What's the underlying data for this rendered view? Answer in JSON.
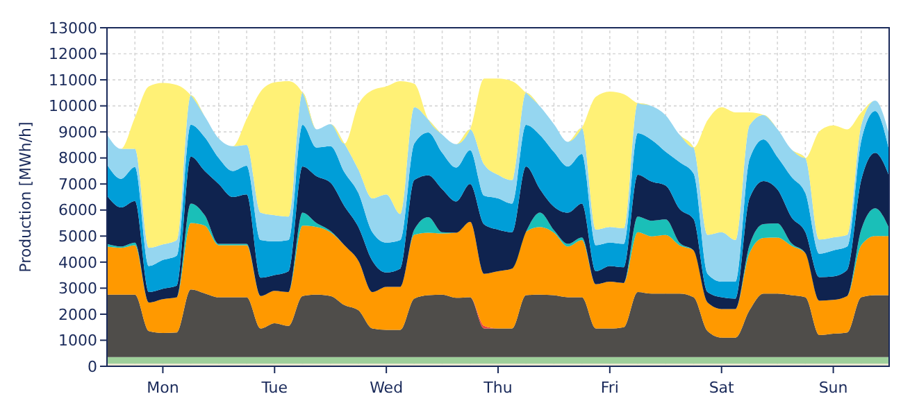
{
  "chart_data": {
    "type": "area",
    "stacked": true,
    "ylabel": "Production [MWh/h]",
    "grid": true,
    "categories": [
      null,
      null,
      null,
      null,
      "Mon",
      null,
      null,
      null,
      null,
      null,
      null,
      null,
      "Tue",
      null,
      null,
      null,
      null,
      null,
      null,
      null,
      "Wed",
      null,
      null,
      null,
      null,
      null,
      null,
      null,
      "Thu",
      null,
      null,
      null,
      null,
      null,
      null,
      null,
      "Fri",
      null,
      null,
      null,
      null,
      null,
      null,
      null,
      "Sat",
      null,
      null,
      null,
      null,
      null,
      null,
      null,
      "Sun",
      null,
      null,
      null,
      null
    ],
    "ylim": [
      0,
      13000
    ],
    "yticks": [
      0,
      1000,
      2000,
      3000,
      4000,
      5000,
      6000,
      7000,
      8000,
      9000,
      10000,
      11000,
      12000,
      13000
    ],
    "series": [
      {
        "color": "#ede6cf",
        "values": [
          100,
          100,
          100,
          100,
          100,
          100,
          100,
          100,
          100,
          100,
          100,
          100,
          100,
          100,
          100,
          100,
          100,
          100,
          100,
          100,
          100,
          100,
          100,
          100,
          100,
          100,
          100,
          100,
          100,
          100,
          100,
          100,
          100,
          100,
          100,
          100,
          100,
          100,
          100,
          100,
          100,
          100,
          100,
          100,
          100,
          100,
          100,
          100,
          100,
          100,
          100,
          100,
          100,
          100,
          100,
          100,
          100
        ]
      },
      {
        "color": "#9fd09b",
        "values": [
          250,
          250,
          250,
          250,
          250,
          250,
          250,
          250,
          250,
          250,
          250,
          250,
          250,
          250,
          250,
          250,
          250,
          250,
          250,
          250,
          250,
          250,
          250,
          250,
          250,
          250,
          250,
          250,
          250,
          250,
          250,
          250,
          250,
          250,
          250,
          250,
          250,
          250,
          250,
          250,
          250,
          250,
          250,
          250,
          250,
          250,
          250,
          250,
          250,
          250,
          250,
          250,
          250,
          250,
          250,
          250,
          250
        ]
      },
      {
        "color": "#4f4d4a",
        "values": [
          2400,
          2400,
          2400,
          1000,
          930,
          950,
          2600,
          2450,
          2300,
          2300,
          2300,
          1100,
          1300,
          1200,
          2350,
          2400,
          2350,
          2000,
          1800,
          1100,
          1050,
          1050,
          2250,
          2380,
          2400,
          2280,
          2300,
          1100,
          1100,
          1100,
          2380,
          2400,
          2380,
          2300,
          2300,
          1100,
          1100,
          1150,
          2500,
          2440,
          2440,
          2440,
          2300,
          1000,
          750,
          750,
          1800,
          2440,
          2440,
          2380,
          2300,
          850,
          900,
          950,
          2300,
          2380,
          2380
        ]
      },
      {
        "color": "#e8453c",
        "values": [
          0,
          0,
          0,
          0,
          0,
          0,
          0,
          0,
          0,
          0,
          0,
          0,
          0,
          0,
          0,
          0,
          0,
          0,
          0,
          0,
          0,
          0,
          0,
          0,
          0,
          0,
          0,
          100,
          0,
          0,
          0,
          0,
          0,
          0,
          0,
          0,
          0,
          0,
          0,
          0,
          0,
          0,
          0,
          0,
          0,
          0,
          0,
          0,
          0,
          0,
          0,
          0,
          0,
          0,
          0,
          0,
          0
        ]
      },
      {
        "color": "#ff9900",
        "values": [
          1850,
          1800,
          1900,
          1100,
          1300,
          1350,
          2550,
          2600,
          2000,
          2000,
          2000,
          1250,
          1250,
          1300,
          2700,
          2600,
          2450,
          2300,
          1900,
          1400,
          1650,
          1650,
          2450,
          2400,
          2350,
          2500,
          2900,
          2000,
          2200,
          2300,
          2440,
          2600,
          2400,
          1950,
          2200,
          1700,
          1800,
          1700,
          2300,
          2200,
          2250,
          1850,
          1800,
          1100,
          1100,
          1100,
          2200,
          2140,
          2150,
          1900,
          1700,
          1320,
          1300,
          1400,
          2000,
          2270,
          2270
        ]
      },
      {
        "color": "#1abfb8",
        "values": [
          100,
          50,
          100,
          0,
          0,
          0,
          750,
          400,
          50,
          50,
          50,
          0,
          0,
          0,
          500,
          150,
          50,
          0,
          0,
          0,
          0,
          0,
          200,
          600,
          50,
          0,
          0,
          0,
          0,
          0,
          0,
          550,
          100,
          100,
          100,
          0,
          0,
          0,
          600,
          600,
          600,
          100,
          0,
          0,
          0,
          0,
          300,
          530,
          550,
          100,
          0,
          0,
          0,
          0,
          600,
          1070,
          300
        ]
      },
      {
        "color": "#0f234f",
        "values": [
          1850,
          1500,
          1600,
          400,
          400,
          450,
          1800,
          1700,
          2300,
          1800,
          1900,
          700,
          600,
          800,
          1770,
          1800,
          1850,
          1500,
          1300,
          1200,
          550,
          700,
          1900,
          1600,
          1650,
          1200,
          1450,
          1900,
          1600,
          1400,
          2500,
          900,
          900,
          1200,
          1300,
          500,
          600,
          600,
          1600,
          1500,
          1300,
          1300,
          1200,
          400,
          450,
          400,
          1800,
          1650,
          1300,
          1000,
          800,
          900,
          900,
          1000,
          1900,
          2130,
          2000
        ]
      },
      {
        "color": "#009ed8",
        "values": [
          1200,
          1100,
          1300,
          1000,
          1100,
          1150,
          1230,
          1300,
          1000,
          1000,
          1100,
          1450,
          1300,
          1200,
          1600,
          1100,
          1400,
          1300,
          1300,
          1100,
          1150,
          1100,
          1400,
          1650,
          1400,
          1300,
          1300,
          1100,
          1200,
          1100,
          1600,
          2080,
          2100,
          1770,
          1900,
          1000,
          900,
          900,
          1600,
          1600,
          1300,
          1800,
          1750,
          700,
          600,
          650,
          1500,
          1600,
          1250,
          1550,
          1500,
          900,
          1000,
          900,
          1500,
          1600,
          1000
        ]
      },
      {
        "color": "#95d6f0",
        "values": [
          1150,
          1150,
          700,
          700,
          600,
          600,
          1130,
          800,
          750,
          950,
          800,
          1050,
          1000,
          900,
          1230,
          700,
          850,
          1100,
          900,
          1300,
          1850,
          1000,
          1400,
          500,
          700,
          900,
          800,
          1200,
          900,
          900,
          1230,
          1100,
          1070,
          950,
          1000,
          600,
          600,
          600,
          1150,
          1300,
          1400,
          1050,
          1000,
          1500,
          1900,
          1600,
          1300,
          940,
          1070,
          1050,
          1350,
          550,
          500,
          450,
          600,
          400,
          600
        ]
      },
      {
        "color": "#fff176",
        "values": [
          0,
          0,
          1200,
          6200,
          6200,
          5950,
          0,
          0,
          0,
          0,
          1000,
          4650,
          5100,
          5200,
          0,
          0,
          0,
          0,
          2500,
          4150,
          4150,
          5100,
          900,
          0,
          0,
          0,
          0,
          3300,
          3700,
          3800,
          0,
          0,
          0,
          0,
          0,
          5100,
          5200,
          5150,
          0,
          0,
          0,
          0,
          0,
          4400,
          4800,
          4900,
          500,
          0,
          0,
          0,
          0,
          4150,
          4300,
          4050,
          500,
          0,
          0
        ]
      }
    ]
  }
}
